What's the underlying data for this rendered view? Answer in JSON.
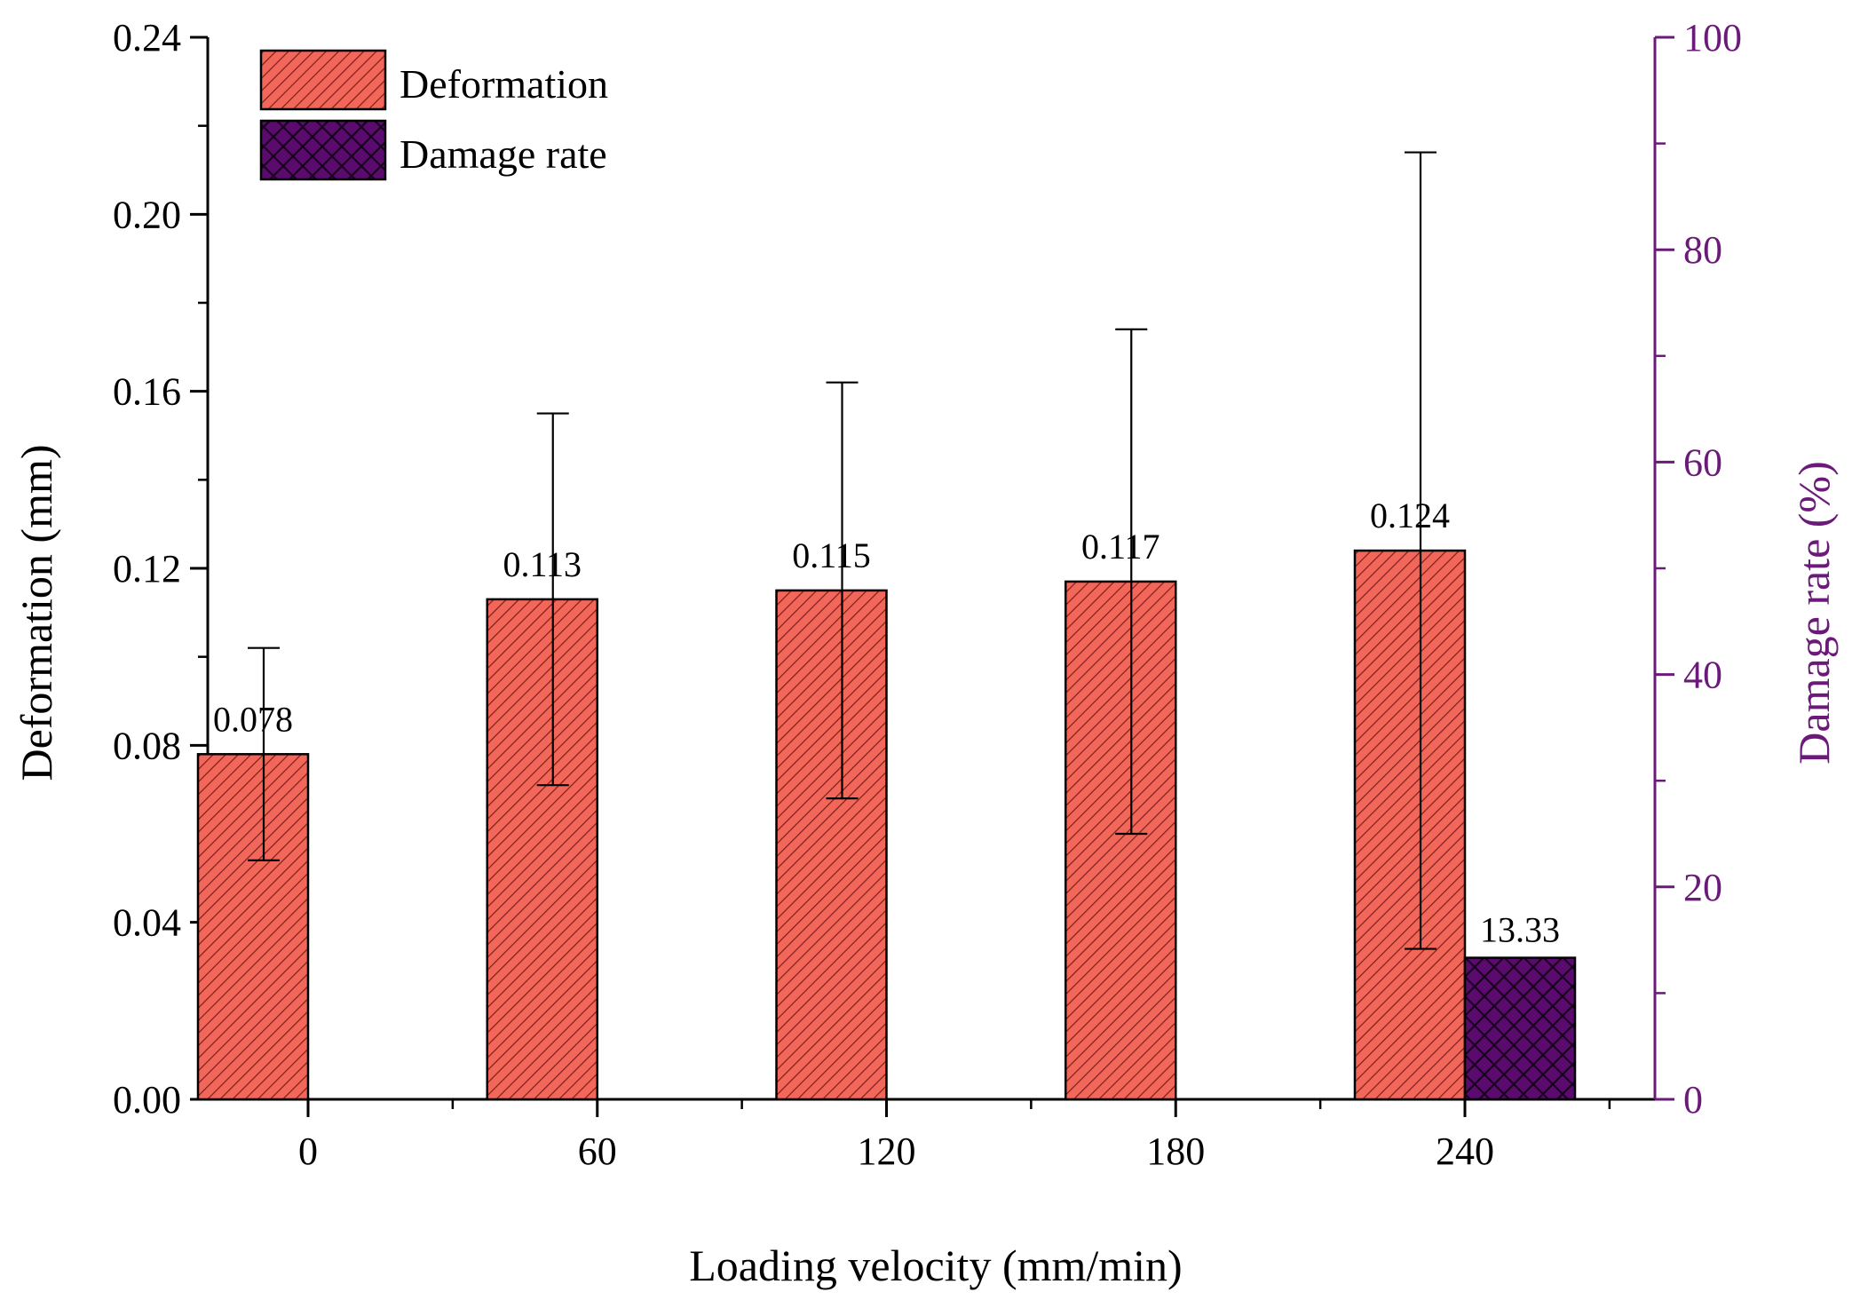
{
  "chart_data": {
    "type": "bar",
    "title": "",
    "xlabel": "Loading velocity (mm/min)",
    "ylabel": "Deformation (mm)",
    "y2label": "Damage rate (%)",
    "categories": [
      "0",
      "60",
      "120",
      "180",
      "240"
    ],
    "ylim": [
      0,
      0.24
    ],
    "y2lim": [
      0,
      100
    ],
    "yticks": [
      "0.00",
      "0.04",
      "0.08",
      "0.12",
      "0.16",
      "0.20",
      "0.24"
    ],
    "y2ticks": [
      "0",
      "20",
      "40",
      "60",
      "80",
      "100"
    ],
    "legend_position": "top-left",
    "series": [
      {
        "name": "Deformation",
        "axis": "left",
        "color": "#f2675a",
        "values": [
          0.078,
          0.113,
          0.115,
          0.117,
          0.124
        ],
        "labels": [
          "0.078",
          "0.113",
          "0.115",
          "0.117",
          "0.124"
        ],
        "error_low": [
          0.054,
          0.071,
          0.068,
          0.06,
          0.034
        ],
        "error_high": [
          0.102,
          0.155,
          0.162,
          0.174,
          0.214
        ]
      },
      {
        "name": "Damage rate",
        "axis": "right",
        "color": "#5b0a6e",
        "values": [
          null,
          null,
          null,
          null,
          13.33
        ],
        "labels": [
          "",
          "",
          "",
          "",
          "13.33"
        ]
      }
    ],
    "right_axis_color": "#6b1a7a"
  }
}
